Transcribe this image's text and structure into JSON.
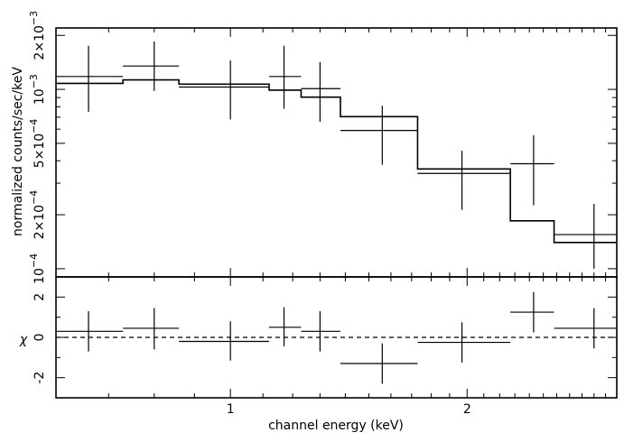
{
  "chart_data": [
    {
      "type": "scatter",
      "panel": "spectrum",
      "xscale": "log",
      "yscale": "log",
      "xlim": [
        0.6,
        3.1
      ],
      "ylim": [
        9e-05,
        0.0022
      ],
      "ylabel": "normalized counts/sec/keV",
      "y_ticks": [
        {
          "value": 0.0001,
          "mantissa": "",
          "exp": "−4",
          "base": "10"
        },
        {
          "value": 0.0002,
          "mantissa": "2×",
          "exp": "−4",
          "base": "10"
        },
        {
          "value": 0.0005,
          "mantissa": "5×",
          "exp": "−4",
          "base": "10"
        },
        {
          "value": 0.001,
          "mantissa": "",
          "exp": "−3",
          "base": "10"
        },
        {
          "value": 0.002,
          "mantissa": "2×",
          "exp": "−3",
          "base": "10"
        }
      ],
      "series": [
        {
          "style": "crosses",
          "points": [
            {
              "x_lo": 0.6,
              "x_hi": 0.73,
              "x": 0.66,
              "y": 0.00118,
              "y_lo": 0.00075,
              "y_hi": 0.00175
            },
            {
              "x_lo": 0.73,
              "x_hi": 0.86,
              "x": 0.8,
              "y": 0.00135,
              "y_lo": 0.00098,
              "y_hi": 0.00185
            },
            {
              "x_lo": 0.86,
              "x_hi": 1.12,
              "x": 1.0,
              "y": 0.00103,
              "y_lo": 0.00068,
              "y_hi": 0.00145
            },
            {
              "x_lo": 1.12,
              "x_hi": 1.23,
              "x": 1.17,
              "y": 0.00118,
              "y_lo": 0.00078,
              "y_hi": 0.00175
            },
            {
              "x_lo": 1.23,
              "x_hi": 1.38,
              "x": 1.3,
              "y": 0.00101,
              "y_lo": 0.00066,
              "y_hi": 0.00142
            },
            {
              "x_lo": 1.38,
              "x_hi": 1.73,
              "x": 1.56,
              "y": 0.00059,
              "y_lo": 0.00038,
              "y_hi": 0.00081
            },
            {
              "x_lo": 1.73,
              "x_hi": 2.27,
              "x": 1.97,
              "y": 0.00034,
              "y_lo": 0.000213,
              "y_hi": 0.000455
            },
            {
              "x_lo": 2.27,
              "x_hi": 2.58,
              "x": 2.43,
              "y": 0.000385,
              "y_lo": 0.000226,
              "y_hi": 0.000555
            },
            {
              "x_lo": 2.58,
              "x_hi": 3.1,
              "x": 2.9,
              "y": 0.000155,
              "y_lo": 0.0001,
              "y_hi": 0.00023
            }
          ]
        },
        {
          "style": "model-step",
          "steps": [
            {
              "x_lo": 0.6,
              "x_hi": 0.73,
              "y": 0.00108
            },
            {
              "x_lo": 0.73,
              "x_hi": 0.86,
              "y": 0.00113
            },
            {
              "x_lo": 0.86,
              "x_hi": 1.12,
              "y": 0.00107
            },
            {
              "x_lo": 1.12,
              "x_hi": 1.23,
              "y": 0.00099
            },
            {
              "x_lo": 1.23,
              "x_hi": 1.38,
              "y": 0.000905
            },
            {
              "x_lo": 1.38,
              "x_hi": 1.73,
              "y": 0.000705
            },
            {
              "x_lo": 1.73,
              "x_hi": 2.27,
              "y": 0.00036
            },
            {
              "x_lo": 2.27,
              "x_hi": 2.58,
              "y": 0.000185
            },
            {
              "x_lo": 2.58,
              "x_hi": 3.1,
              "y": 0.00014
            }
          ]
        }
      ]
    },
    {
      "type": "scatter",
      "panel": "residuals",
      "xscale": "log",
      "xlim": [
        0.6,
        3.1
      ],
      "ylim": [
        -3.0,
        3.0
      ],
      "xlabel": "channel energy (keV)",
      "ylabel": "χ",
      "x_ticks": [
        1,
        2
      ],
      "y_ticks": [
        -2,
        0,
        2
      ],
      "zero_line": "dashed",
      "points": [
        {
          "x_lo": 0.6,
          "x_hi": 0.73,
          "x": 0.66,
          "y": 0.3,
          "y_lo": -0.7,
          "y_hi": 1.3
        },
        {
          "x_lo": 0.73,
          "x_hi": 0.86,
          "x": 0.8,
          "y": 0.45,
          "y_lo": -0.6,
          "y_hi": 1.45
        },
        {
          "x_lo": 0.86,
          "x_hi": 1.12,
          "x": 1.0,
          "y": -0.2,
          "y_lo": -1.15,
          "y_hi": 0.8
        },
        {
          "x_lo": 1.12,
          "x_hi": 1.23,
          "x": 1.17,
          "y": 0.5,
          "y_lo": -0.45,
          "y_hi": 1.5
        },
        {
          "x_lo": 1.23,
          "x_hi": 1.38,
          "x": 1.3,
          "y": 0.3,
          "y_lo": -0.7,
          "y_hi": 1.3
        },
        {
          "x_lo": 1.38,
          "x_hi": 1.73,
          "x": 1.56,
          "y": -1.3,
          "y_lo": -2.3,
          "y_hi": -0.3
        },
        {
          "x_lo": 1.73,
          "x_hi": 2.27,
          "x": 1.97,
          "y": -0.25,
          "y_lo": -1.25,
          "y_hi": 0.75
        },
        {
          "x_lo": 2.27,
          "x_hi": 2.58,
          "x": 2.43,
          "y": 1.25,
          "y_lo": 0.25,
          "y_hi": 2.25
        },
        {
          "x_lo": 2.58,
          "x_hi": 3.1,
          "x": 2.9,
          "y": 0.45,
          "y_lo": -0.55,
          "y_hi": 1.45
        }
      ]
    }
  ]
}
